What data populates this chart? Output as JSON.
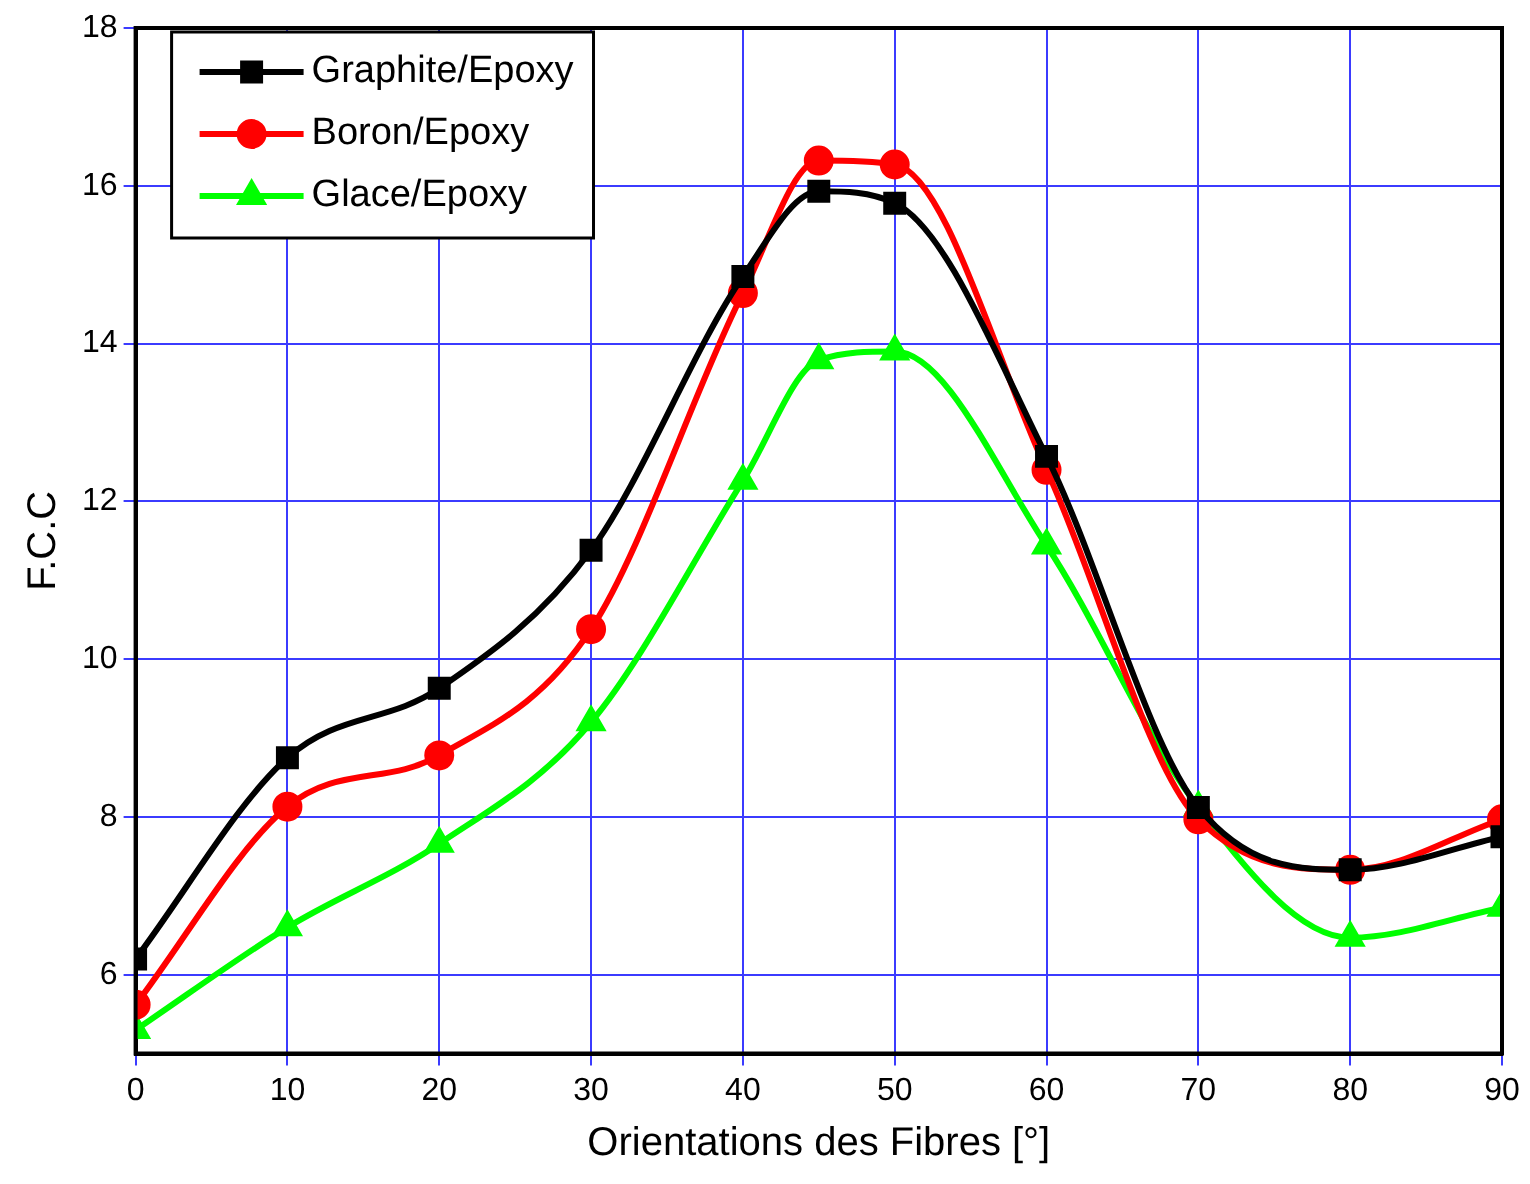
{
  "chart_data": {
    "type": "line",
    "xlabel": "Orientations des Fibres [°]",
    "ylabel": "F.C.C",
    "x": [
      0,
      10,
      20,
      30,
      40,
      45,
      50,
      60,
      70,
      80,
      90
    ],
    "series": [
      {
        "name": "Graphite/Epoxy",
        "color": "#000000",
        "marker": "square",
        "values": [
          6.2,
          8.75,
          9.63,
          11.38,
          14.85,
          15.93,
          15.78,
          12.57,
          8.12,
          7.33,
          7.75
        ]
      },
      {
        "name": "Boron/Epoxy",
        "color": "#ff0000",
        "marker": "circle",
        "values": [
          5.62,
          8.13,
          8.78,
          10.38,
          14.64,
          16.32,
          16.27,
          12.4,
          7.97,
          7.33,
          7.97
        ]
      },
      {
        "name": "Glace/Epoxy",
        "color": "#00ff00",
        "marker": "triangle",
        "values": [
          5.3,
          6.6,
          7.66,
          9.2,
          12.26,
          13.79,
          13.9,
          11.44,
          8.12,
          6.47,
          6.85
        ]
      }
    ],
    "xlim": [
      0,
      90
    ],
    "xticks": [
      0,
      10,
      20,
      30,
      40,
      50,
      60,
      70,
      80,
      90
    ],
    "ylim": [
      5,
      18
    ],
    "yticks": [
      6,
      8,
      10,
      12,
      14,
      16,
      18
    ],
    "grid": true,
    "legend": "top left"
  }
}
